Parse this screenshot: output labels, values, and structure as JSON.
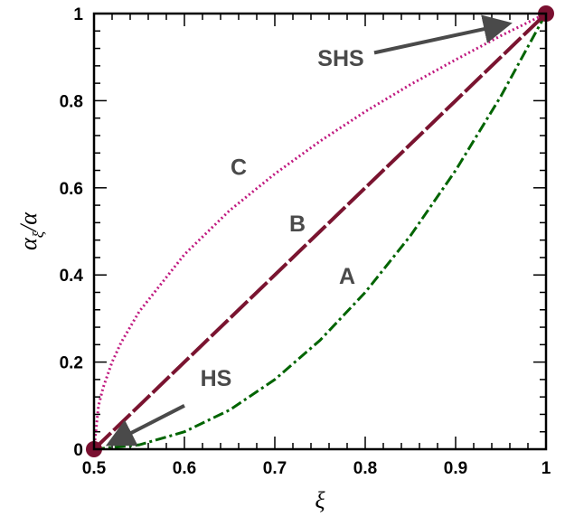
{
  "chart_data": {
    "type": "line",
    "title": "",
    "xlabel": "ξ",
    "ylabel": "α_ξ / α",
    "xlim": [
      0.5,
      1.0
    ],
    "ylim": [
      0,
      1.0
    ],
    "grid": false,
    "x_ticks": [
      "0.5",
      "0.6",
      "0.7",
      "0.8",
      "0.9",
      "1"
    ],
    "y_ticks": [
      "0",
      "0.2",
      "0.4",
      "0.6",
      "0.8",
      "1"
    ],
    "series": [
      {
        "name": "A",
        "color": "#006400",
        "style": "dash-dot",
        "x": [
          0.5,
          0.55,
          0.6,
          0.65,
          0.7,
          0.75,
          0.8,
          0.85,
          0.9,
          0.95,
          1.0
        ],
        "y": [
          0.0,
          0.01,
          0.04,
          0.09,
          0.16,
          0.25,
          0.36,
          0.49,
          0.64,
          0.81,
          1.0
        ]
      },
      {
        "name": "B",
        "color": "#7a1430",
        "style": "long-dash",
        "x": [
          0.5,
          0.55,
          0.6,
          0.65,
          0.7,
          0.75,
          0.8,
          0.85,
          0.9,
          0.95,
          1.0
        ],
        "y": [
          0.0,
          0.1,
          0.2,
          0.3,
          0.4,
          0.5,
          0.6,
          0.7,
          0.8,
          0.9,
          1.0
        ]
      },
      {
        "name": "C",
        "color": "#c0197f",
        "style": "dotted",
        "x": [
          0.5,
          0.505,
          0.51,
          0.52,
          0.53,
          0.55,
          0.6,
          0.65,
          0.7,
          0.75,
          0.8,
          0.85,
          0.9,
          0.95,
          1.0
        ],
        "y": [
          0.0,
          0.1,
          0.141,
          0.2,
          0.245,
          0.316,
          0.447,
          0.548,
          0.632,
          0.707,
          0.775,
          0.837,
          0.894,
          0.949,
          1.0
        ]
      }
    ],
    "endpoints": [
      {
        "name": "HS",
        "x": 0.5,
        "y": 0.0,
        "color": "#7a1030"
      },
      {
        "name": "SHS",
        "x": 1.0,
        "y": 1.0,
        "color": "#7a1030"
      }
    ],
    "annotations": [
      {
        "text": "A",
        "x": 0.78,
        "y": 0.38
      },
      {
        "text": "B",
        "x": 0.725,
        "y": 0.5
      },
      {
        "text": "C",
        "x": 0.66,
        "y": 0.63
      },
      {
        "text": "HS",
        "x": 0.635,
        "y": 0.145
      },
      {
        "text": "SHS",
        "x": 0.773,
        "y": 0.88
      }
    ],
    "arrows": [
      {
        "label": "HS",
        "from": [
          0.6,
          0.1
        ],
        "to": [
          0.52,
          0.015
        ]
      },
      {
        "label": "SHS",
        "from": [
          0.81,
          0.91
        ],
        "to": [
          0.955,
          0.975
        ]
      }
    ]
  }
}
